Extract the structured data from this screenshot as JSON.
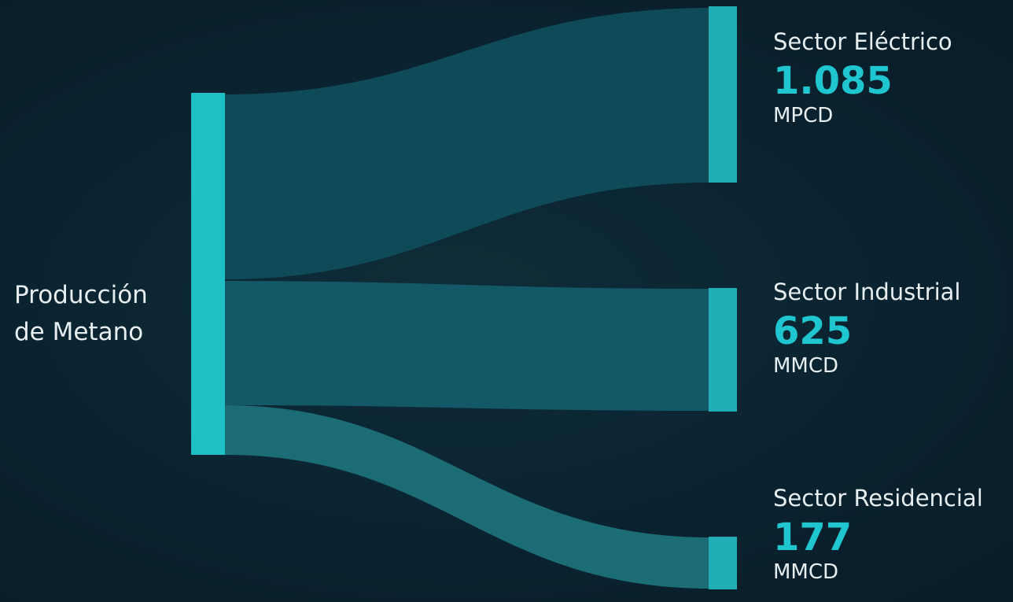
{
  "source": {
    "label_line1": "Producción",
    "label_line2": "de Metano"
  },
  "targets": [
    {
      "name": "Sector Eléctrico",
      "value": "1.085",
      "unit": "MPCD"
    },
    {
      "name": "Sector Industrial",
      "value": "625",
      "unit": "MMCD"
    },
    {
      "name": "Sector Residencial",
      "value": "177",
      "unit": "MMCD"
    }
  ],
  "colors": {
    "background": "#0b2530",
    "node": "#1fbfc6",
    "accent_value": "#1fc6cf",
    "text": "#e6eef0",
    "flow_1": "#0e4a58",
    "flow_2": "#135866",
    "flow_3": "#1b6c74"
  }
}
